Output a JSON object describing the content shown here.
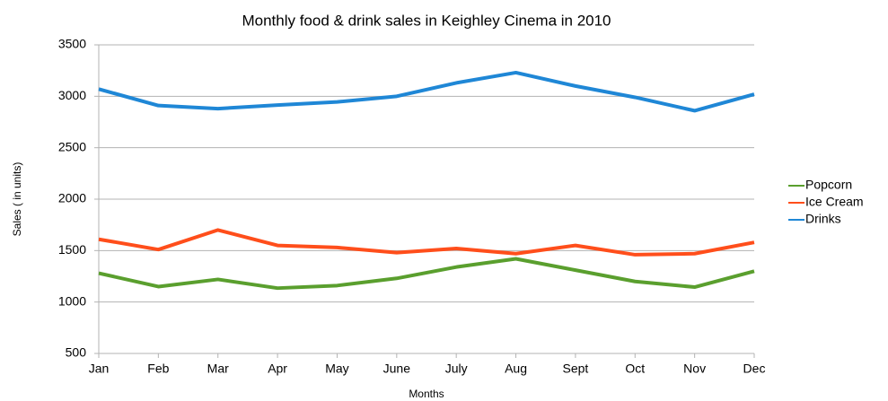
{
  "chart_data": {
    "type": "line",
    "title": "Monthly food & drink sales in Keighley Cinema in 2010",
    "x_label": "Months",
    "y_label": "Sales ( in units)",
    "categories": [
      "Jan",
      "Feb",
      "Mar",
      "Apr",
      "May",
      "June",
      "July",
      "Aug",
      "Sept",
      "Oct",
      "Nov",
      "Dec"
    ],
    "series": [
      {
        "name": "Popcorn",
        "color": "#5a9f2e",
        "values": [
          1280,
          1150,
          1220,
          1135,
          1160,
          1230,
          1340,
          1420,
          1310,
          1200,
          1145,
          1300
        ]
      },
      {
        "name": "Ice Cream",
        "color": "#ff4e1b",
        "values": [
          1610,
          1510,
          1700,
          1550,
          1530,
          1480,
          1520,
          1470,
          1550,
          1460,
          1470,
          1580
        ]
      },
      {
        "name": "Drinks",
        "color": "#1f87d6",
        "values": [
          3070,
          2910,
          2880,
          2915,
          2945,
          3000,
          3130,
          3230,
          3100,
          2990,
          2860,
          3020
        ]
      }
    ],
    "ylim": [
      500,
      3500
    ],
    "yticks": [
      500,
      1000,
      1500,
      2000,
      2500,
      3000,
      3500
    ],
    "grid": true,
    "legend": "right"
  }
}
